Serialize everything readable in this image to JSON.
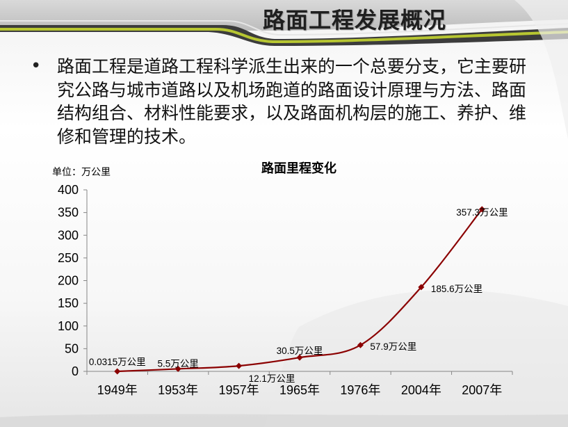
{
  "slide": {
    "title": "路面工程发展概况",
    "bullet": "•",
    "body": "路面工程是道路工程科学派生出来的一个总要分支，它主要研究公路与城市道路以及机场跑道的路面设计原理与方法、路面结构组合、材料性能要求，以及路面机构层的施工、养护、维修和管理的技术。"
  },
  "chart_data": {
    "type": "line",
    "title": "路面里程变化",
    "unit_label": "单位：万公里",
    "categories": [
      "1949年",
      "1953年",
      "1957年",
      "1965年",
      "1976年",
      "2004年",
      "2007年"
    ],
    "values": [
      0.0315,
      5.5,
      12.1,
      30.5,
      57.9,
      185.6,
      357.3
    ],
    "data_labels": [
      "0.0315万公里",
      "5.5万公里",
      "12.1万公里",
      "30.5万公里",
      "57.9万公里",
      "185.6万公里",
      "357.3万公里"
    ],
    "ylim": [
      0,
      400
    ],
    "yticks": [
      0,
      50,
      100,
      150,
      200,
      250,
      300,
      350,
      400
    ],
    "line_color": "#8b0000",
    "marker_color": "#8b0000",
    "grid": false,
    "legend": "none"
  },
  "colors": {
    "accent_green": "#b7c631",
    "dark_band": "#3c3c3c"
  }
}
